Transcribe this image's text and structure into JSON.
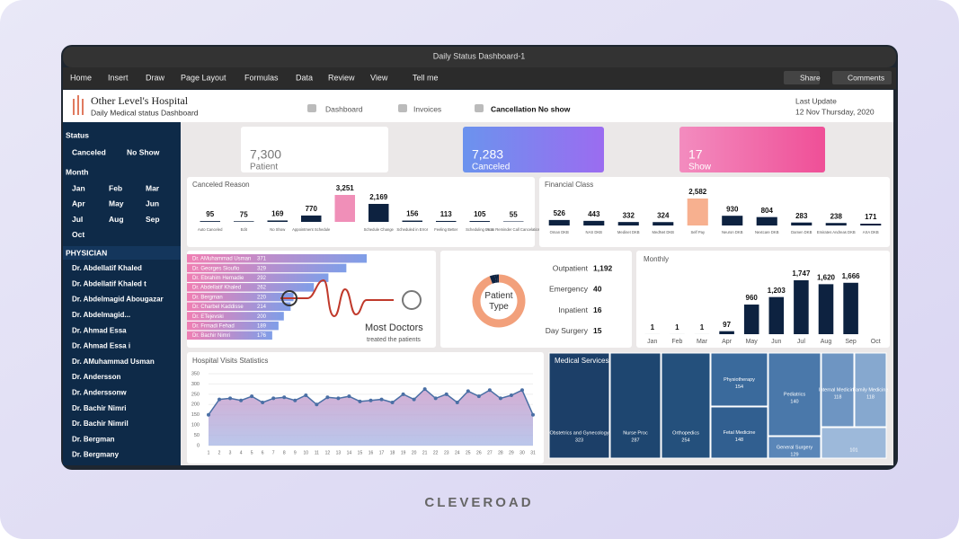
{
  "window_title": "Daily Status Dashboard-1",
  "menu": [
    "Home",
    "Insert",
    "Draw",
    "Page Layout",
    "Formulas",
    "Data",
    "Review",
    "View",
    "Tell me"
  ],
  "toolbar_buttons": [
    "Share",
    "Comments"
  ],
  "header": {
    "title": "Other Level's Hospital",
    "subtitle": "Daily Medical status Dashboard",
    "nav": [
      "Dashboard",
      "Invoices",
      "Cancellation No show"
    ],
    "last_update_label": "Last Update",
    "last_update": "12 Nov Thursday, 2020"
  },
  "sidebar": {
    "status": {
      "title": "Status",
      "items": [
        "Canceled",
        "No Show"
      ]
    },
    "month": {
      "title": "Month",
      "items": [
        "Jan",
        "Feb",
        "Mar",
        "Apr",
        "May",
        "Jun",
        "Jul",
        "Aug",
        "Sep",
        "Oct"
      ]
    },
    "physician": {
      "title": "PHYSICIAN",
      "items": [
        "Dr. Abdellatif Khaled",
        "Dr. Abdellatif Khaled t",
        "Dr. Abdelmagid Abougazar",
        "Dr. Abdelmagid...",
        "Dr. Ahmad Essa",
        "Dr. Ahmad Essa i",
        "Dr. AMuhammad Usman",
        "Dr. Andersson",
        "Dr. Anderssonw",
        "Dr. Bachir Nimri",
        "Dr. Bachir Nimril",
        "Dr. Bergman",
        "Dr. Bergmany"
      ]
    }
  },
  "kpis": [
    {
      "value": "7,300",
      "label": "Patient"
    },
    {
      "value": "7,283",
      "label": "Canceled"
    },
    {
      "value": "17",
      "label": "Show"
    }
  ],
  "canceled_reason": {
    "type": "bar",
    "title": "Canceled Reason",
    "categories": [
      "Auto Canceled",
      "Edit",
      "No Show",
      "Appointment Schedule",
      null,
      "Schedule Change",
      "Scheduled in Error",
      "Feeling Better",
      "Scheduling Error",
      "Auto Reminder Call Cancelation"
    ],
    "values": [
      95,
      75,
      169,
      770,
      3251,
      2169,
      156,
      113,
      105,
      55
    ],
    "value_labels": [
      "95",
      "75",
      "169",
      "770",
      "3,251",
      "2,169",
      "156",
      "113",
      "105",
      "55"
    ],
    "colors": [
      "#0d2240",
      "#0d2240",
      "#0d2240",
      "#0d2240",
      "#f08fb8",
      "#0d2240",
      "#0d2240",
      "#0d2240",
      "#0d2240",
      "#0d2240"
    ]
  },
  "financial_class": {
    "type": "bar",
    "title": "Financial Class",
    "categories": [
      "Oman DKB",
      "NAS DKB",
      "Medinet DKB",
      "MedNet DKB",
      "Self Pay",
      "Neuron DKB",
      "Nextcare DKB",
      "Damen DKB",
      "Emirates Andreas DKB",
      "AXA DKB"
    ],
    "values": [
      526,
      443,
      332,
      324,
      2582,
      930,
      804,
      283,
      238,
      171
    ],
    "value_labels": [
      "526",
      "443",
      "332",
      "324",
      "2,582",
      "930",
      "804",
      "283",
      "238",
      "171"
    ],
    "colors": [
      "#0d2240",
      "#0d2240",
      "#0d2240",
      "#0d2240",
      "#f7b08f",
      "#0d2240",
      "#0d2240",
      "#0d2240",
      "#0d2240",
      "#0d2240"
    ]
  },
  "most_doctors": {
    "type": "hbar",
    "title": "Most Doctors",
    "subtitle": "treated the patients",
    "categories": [
      "Dr. AMuhammad Usman",
      "Dr. Georges Sioufio",
      "Dr. Ebrahim Hemadie",
      "Dr. Abdellatif Khaled",
      "Dr. Bergman",
      "Dr. Charbel Kaddisse",
      "Dr. ETejevski",
      "Dr. Frmadi Fehad",
      "Dr. Bachir Nimri"
    ],
    "values": [
      371,
      329,
      292,
      262,
      220,
      214,
      200,
      189,
      176
    ]
  },
  "patient_type": {
    "type": "donut",
    "title": "Patient Type",
    "categories": [
      "Outpatient",
      "Emergency",
      "Inpatient",
      "Day Surgery"
    ],
    "values": [
      1192,
      40,
      16,
      15
    ],
    "value_labels": [
      "1,192",
      "40",
      "16",
      "15"
    ],
    "colors": [
      "#f2a07b",
      "#0d2240",
      "#0d2240",
      "#0d2240"
    ]
  },
  "monthly": {
    "type": "bar",
    "title": "Monthly",
    "categories": [
      "Jan",
      "Feb",
      "Mar",
      "Apr",
      "May",
      "Jun",
      "Jul",
      "Aug",
      "Sep",
      "Oct"
    ],
    "values": [
      1,
      1,
      1,
      97,
      960,
      1203,
      1747,
      1620,
      1666,
      null
    ],
    "value_labels": [
      "1",
      "1",
      "1",
      "97",
      "960",
      "1,203",
      "1,747",
      "1,620",
      "1,666",
      null
    ],
    "color": "#0d2240"
  },
  "hospital_visits": {
    "type": "line",
    "title": "Hospital Visits Statistics",
    "x": [
      1,
      2,
      3,
      4,
      5,
      6,
      7,
      8,
      9,
      10,
      11,
      12,
      13,
      14,
      15,
      16,
      17,
      18,
      19,
      20,
      21,
      22,
      23,
      24,
      25,
      26,
      27,
      28,
      29,
      30,
      31
    ],
    "values": [
      150,
      225,
      230,
      220,
      240,
      210,
      230,
      235,
      220,
      245,
      200,
      235,
      230,
      240,
      215,
      220,
      225,
      210,
      250,
      225,
      275,
      230,
      250,
      210,
      265,
      240,
      270,
      230,
      245,
      270,
      150
    ],
    "xlim": [
      1,
      31
    ],
    "ylim": [
      0,
      350
    ],
    "yticks": [
      0,
      50,
      100,
      150,
      200,
      250,
      300,
      350
    ],
    "color": "#4a6fa5",
    "grid": true
  },
  "medical_services": {
    "type": "treemap",
    "title": "Medical Services",
    "items": [
      {
        "name": "Obstetrics and Gynecology",
        "value": 323
      },
      {
        "name": "Nurse Proc",
        "value": 287
      },
      {
        "name": "Orthopedics",
        "value": 254
      },
      {
        "name": "Physiotherapy",
        "value": 154
      },
      {
        "name": "Fetal Medicine",
        "value": 148
      },
      {
        "name": "Pediatrics",
        "value": 140
      },
      {
        "name": "General Surgery",
        "value": 129
      },
      {
        "name": "Internal Medicine",
        "value": 118
      },
      {
        "name": "Family Medicine",
        "value": 118
      },
      {
        "name": null,
        "value": 101
      }
    ]
  },
  "footer": "CLEVEROAD"
}
